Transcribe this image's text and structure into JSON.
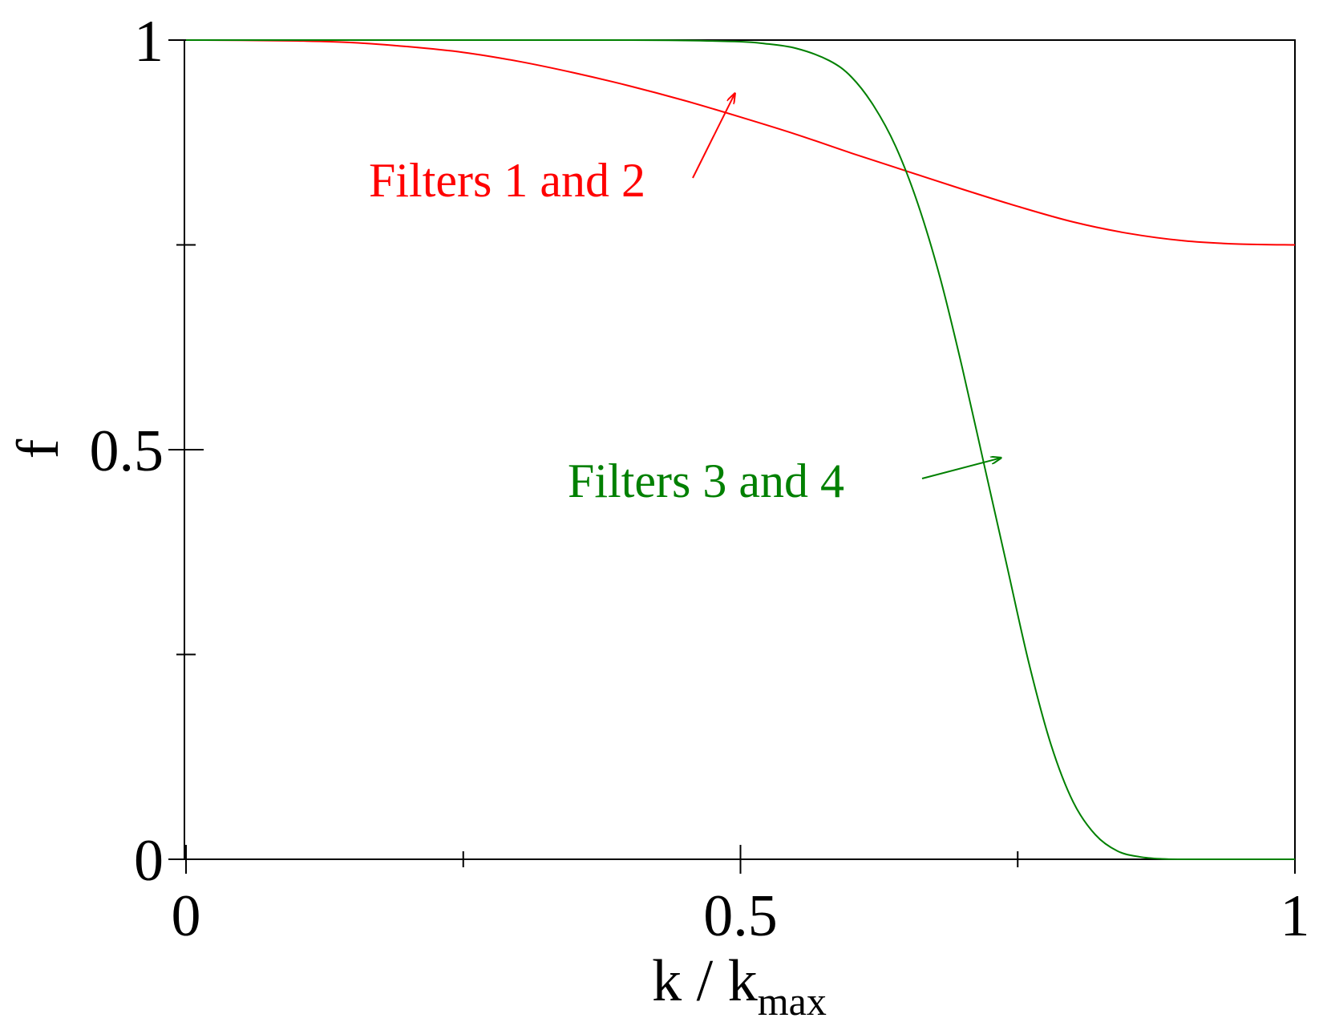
{
  "chart_data": {
    "type": "line",
    "title": "",
    "xlabel": "k / k",
    "xlabel_subscript": "max",
    "ylabel": "f",
    "xlim": [
      0,
      1
    ],
    "ylim": [
      0,
      1
    ],
    "x_ticks_labeled": [
      {
        "value": 0,
        "label": "0"
      },
      {
        "value": 0.5,
        "label": "0.5"
      },
      {
        "value": 1,
        "label": "1"
      }
    ],
    "x_ticks_minor": [
      0.25,
      0.75
    ],
    "y_ticks_labeled": [
      {
        "value": 0,
        "label": "0"
      },
      {
        "value": 0.5,
        "label": "0.5"
      },
      {
        "value": 1,
        "label": "1"
      }
    ],
    "y_ticks_minor": [
      0.25,
      0.75
    ],
    "grid": false,
    "legend": "none",
    "series": [
      {
        "name": "Filters 1 and 2",
        "color": "#ff0000",
        "x": [
          0,
          0.05,
          0.1,
          0.15,
          0.2,
          0.25,
          0.3,
          0.35,
          0.4,
          0.45,
          0.5,
          0.55,
          0.6,
          0.65,
          0.7,
          0.75,
          0.8,
          0.85,
          0.9,
          0.95,
          1.0
        ],
        "y": [
          1.0,
          0.9998,
          0.999,
          0.997,
          0.992,
          0.985,
          0.974,
          0.96,
          0.944,
          0.926,
          0.906,
          0.885,
          0.862,
          0.84,
          0.818,
          0.797,
          0.778,
          0.764,
          0.755,
          0.751,
          0.75
        ]
      },
      {
        "name": "Filters 3 and 4",
        "color": "#008000",
        "x": [
          0,
          0.1,
          0.2,
          0.3,
          0.4,
          0.45,
          0.5,
          0.52,
          0.55,
          0.58,
          0.6,
          0.62,
          0.64,
          0.66,
          0.68,
          0.7,
          0.72,
          0.74,
          0.76,
          0.78,
          0.8,
          0.82,
          0.84,
          0.86,
          0.88,
          0.9,
          0.95,
          1.0
        ],
        "y": [
          1.0,
          1.0,
          1.0,
          1.0,
          1.0,
          0.9995,
          0.998,
          0.996,
          0.99,
          0.975,
          0.955,
          0.92,
          0.87,
          0.8,
          0.71,
          0.6,
          0.48,
          0.36,
          0.24,
          0.14,
          0.07,
          0.03,
          0.01,
          0.003,
          0.0005,
          0.0,
          0.0,
          0.0
        ]
      }
    ],
    "annotations": [
      {
        "text": "Filters 1 and 2",
        "color": "#ff0000",
        "points_to": {
          "x": 0.495,
          "y": 0.935
        }
      },
      {
        "text": "Filters 3 and 4",
        "color": "#008000",
        "points_to": {
          "x": 0.735,
          "y": 0.49
        }
      }
    ]
  }
}
